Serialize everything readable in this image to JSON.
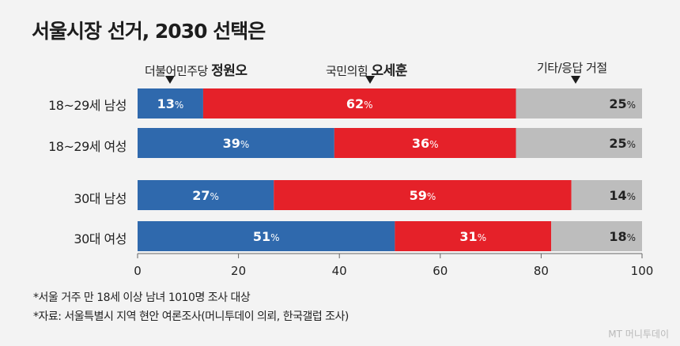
{
  "title": "서울시장 선거, 2030 선택은",
  "candidates": [
    {
      "party": "더불어민주당",
      "name": "정원오"
    },
    {
      "party": "국민의힘",
      "name": "오세훈"
    },
    {
      "party": "기타/응답 거절",
      "name": ""
    }
  ],
  "notes": [
    "*서울 거주 만 18세 이상 남녀 1010명 조사 대상",
    "*자료: 서울특별시 지역 현안 여론조사(머니투데이 의뢰, 한국갤럽 조사)"
  ],
  "watermark": "MT 머니투데이",
  "colors": {
    "blue": "#2f69ad",
    "red": "#e52129",
    "gray": "#bdbdbd",
    "background": "#f3f3f3"
  },
  "chart_data": {
    "type": "bar",
    "orientation": "horizontal",
    "stacked": true,
    "categories": [
      "18~29세 남성",
      "18~29세 여성",
      "30대 남성",
      "30대 여성"
    ],
    "series": [
      {
        "name": "더불어민주당 정원오",
        "values": [
          13,
          39,
          27,
          51
        ],
        "color": "#2f69ad"
      },
      {
        "name": "국민의힘 오세훈",
        "values": [
          62,
          36,
          59,
          31
        ],
        "color": "#e52129"
      },
      {
        "name": "기타/응답 거절",
        "values": [
          25,
          25,
          14,
          18
        ],
        "color": "#bdbdbd"
      }
    ],
    "value_suffix": "%",
    "xlim": [
      0,
      100
    ],
    "xticks": [
      0,
      20,
      40,
      60,
      80,
      100
    ],
    "legend": "top",
    "grid": false
  }
}
